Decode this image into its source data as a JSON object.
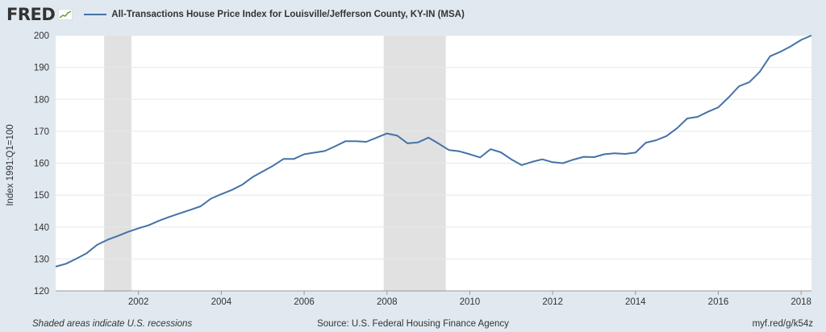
{
  "header": {
    "logo": "FRED",
    "series_title": "All-Transactions House Price Index for Louisville/Jefferson County, KY-IN (MSA)"
  },
  "footer": {
    "recession_note": "Shaded areas indicate U.S. recessions",
    "source": "Source: U.S. Federal Housing Finance Agency",
    "link": "myf.red/g/k54z"
  },
  "colors": {
    "line": "#4572a7",
    "background": "#e1e9f0",
    "plot": "#ffffff",
    "recession": "#e1e1e1",
    "grid": "#e4e8ec"
  },
  "chart_data": {
    "type": "line",
    "title": "All-Transactions House Price Index for Louisville/Jefferson County, KY-IN (MSA)",
    "ylabel": "Index 1991:Q1=100",
    "xlabel": "",
    "xlim": [
      2000.0,
      2018.25
    ],
    "ylim": [
      120,
      200
    ],
    "yticks": [
      120,
      130,
      140,
      150,
      160,
      170,
      180,
      190,
      200
    ],
    "xticks": [
      "2002",
      "2004",
      "2006",
      "2008",
      "2010",
      "2012",
      "2014",
      "2016",
      "2018"
    ],
    "grid": true,
    "recessions": [
      [
        2001.17,
        2001.83
      ],
      [
        2007.92,
        2009.42
      ]
    ],
    "series": [
      {
        "x": [
          2000.0,
          2000.25,
          2000.5,
          2000.75,
          2001.0,
          2001.25,
          2001.5,
          2001.75,
          2002.0,
          2002.25,
          2002.5,
          2002.75,
          2003.0,
          2003.25,
          2003.5,
          2003.75,
          2004.0,
          2004.25,
          2004.5,
          2004.75,
          2005.0,
          2005.25,
          2005.5,
          2005.75,
          2006.0,
          2006.25,
          2006.5,
          2006.75,
          2007.0,
          2007.25,
          2007.5,
          2007.75,
          2008.0,
          2008.25,
          2008.5,
          2008.75,
          2009.0,
          2009.25,
          2009.5,
          2009.75,
          2010.0,
          2010.25,
          2010.5,
          2010.75,
          2011.0,
          2011.25,
          2011.5,
          2011.75,
          2012.0,
          2012.25,
          2012.5,
          2012.75,
          2013.0,
          2013.25,
          2013.5,
          2013.75,
          2014.0,
          2014.25,
          2014.5,
          2014.75,
          2015.0,
          2015.25,
          2015.5,
          2015.75,
          2016.0,
          2016.25,
          2016.5,
          2016.75,
          2017.0,
          2017.25,
          2017.5,
          2017.75,
          2018.0,
          2018.25
        ],
        "values": [
          127.6,
          128.5,
          130.1,
          131.8,
          134.4,
          136.0,
          137.2,
          138.5,
          139.6,
          140.6,
          142.0,
          143.2,
          144.3,
          145.4,
          146.5,
          148.9,
          150.3,
          151.6,
          153.2,
          155.6,
          157.4,
          159.2,
          161.3,
          161.3,
          162.8,
          163.3,
          163.8,
          165.3,
          166.9,
          166.9,
          166.7,
          168.0,
          169.3,
          168.6,
          166.2,
          166.5,
          168.0,
          166.1,
          164.1,
          163.7,
          162.8,
          161.8,
          164.4,
          163.4,
          161.2,
          159.4,
          160.4,
          161.2,
          160.3,
          160.0,
          161.1,
          162.0,
          161.9,
          162.8,
          163.1,
          162.9,
          163.3,
          166.4,
          167.2,
          168.5,
          170.9,
          174.0,
          174.5,
          176.1,
          177.5,
          180.6,
          184.1,
          185.4,
          188.6,
          193.5,
          194.9,
          196.6,
          198.6,
          200.0
        ]
      }
    ]
  }
}
